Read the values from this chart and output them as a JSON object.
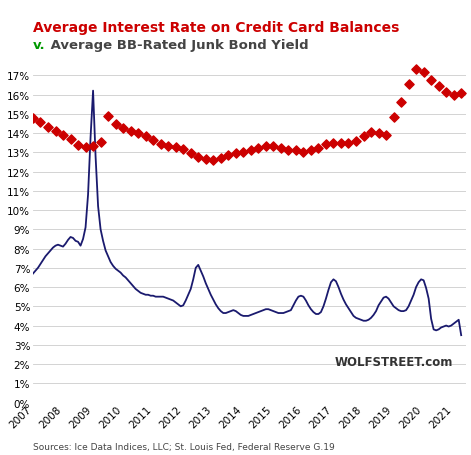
{
  "title_line1": "Average Interest Rate on Credit Card Balances",
  "title_line2_v": "v.",
  "title_line2_rest": " Average BB-Rated Junk Bond Yield",
  "title_color": "#cc0000",
  "title_v_color": "#009900",
  "title_line2_color": "#444444",
  "source_text": "Sources: Ice Data Indices, LLC; St. Louis Fed, Federal Reserve G.19",
  "watermark": "WOLFSTREET.com",
  "background_color": "#ffffff",
  "grid_color": "#cccccc",
  "ylim": [
    0,
    18
  ],
  "yticks": [
    0,
    1,
    2,
    3,
    4,
    5,
    6,
    7,
    8,
    9,
    10,
    11,
    12,
    13,
    14,
    15,
    16,
    17
  ],
  "cc_line_color": "#1a1a6e",
  "junk_marker_color": "#cc0000",
  "cc_dates": [
    2007.0,
    2007.083,
    2007.167,
    2007.25,
    2007.333,
    2007.417,
    2007.5,
    2007.583,
    2007.667,
    2007.75,
    2007.833,
    2007.917,
    2008.0,
    2008.083,
    2008.167,
    2008.25,
    2008.333,
    2008.417,
    2008.5,
    2008.583,
    2008.667,
    2008.75,
    2008.833,
    2008.917,
    2009.0,
    2009.083,
    2009.167,
    2009.25,
    2009.333,
    2009.417,
    2009.5,
    2009.583,
    2009.667,
    2009.75,
    2009.833,
    2009.917,
    2010.0,
    2010.083,
    2010.167,
    2010.25,
    2010.333,
    2010.417,
    2010.5,
    2010.583,
    2010.667,
    2010.75,
    2010.833,
    2010.917,
    2011.0,
    2011.083,
    2011.167,
    2011.25,
    2011.333,
    2011.417,
    2011.5,
    2011.583,
    2011.667,
    2011.75,
    2011.833,
    2011.917,
    2012.0,
    2012.083,
    2012.167,
    2012.25,
    2012.333,
    2012.417,
    2012.5,
    2012.583,
    2012.667,
    2012.75,
    2012.833,
    2012.917,
    2013.0,
    2013.083,
    2013.167,
    2013.25,
    2013.333,
    2013.417,
    2013.5,
    2013.583,
    2013.667,
    2013.75,
    2013.833,
    2013.917,
    2014.0,
    2014.083,
    2014.167,
    2014.25,
    2014.333,
    2014.417,
    2014.5,
    2014.583,
    2014.667,
    2014.75,
    2014.833,
    2014.917,
    2015.0,
    2015.083,
    2015.167,
    2015.25,
    2015.333,
    2015.417,
    2015.5,
    2015.583,
    2015.667,
    2015.75,
    2015.833,
    2015.917,
    2016.0,
    2016.083,
    2016.167,
    2016.25,
    2016.333,
    2016.417,
    2016.5,
    2016.583,
    2016.667,
    2016.75,
    2016.833,
    2016.917,
    2017.0,
    2017.083,
    2017.167,
    2017.25,
    2017.333,
    2017.417,
    2017.5,
    2017.583,
    2017.667,
    2017.75,
    2017.833,
    2017.917,
    2018.0,
    2018.083,
    2018.167,
    2018.25,
    2018.333,
    2018.417,
    2018.5,
    2018.583,
    2018.667,
    2018.75,
    2018.833,
    2018.917,
    2019.0,
    2019.083,
    2019.167,
    2019.25,
    2019.333,
    2019.417,
    2019.5,
    2019.583,
    2019.667,
    2019.75,
    2019.833,
    2019.917,
    2020.0,
    2020.083,
    2020.167,
    2020.25,
    2020.333,
    2020.417,
    2020.5,
    2020.583,
    2020.667,
    2020.75,
    2020.833,
    2020.917,
    2021.0,
    2021.083,
    2021.167,
    2021.25
  ],
  "cc_values": [
    6.7,
    6.85,
    7.0,
    7.2,
    7.4,
    7.6,
    7.75,
    7.9,
    8.05,
    8.15,
    8.2,
    8.15,
    8.1,
    8.25,
    8.45,
    8.6,
    8.55,
    8.4,
    8.35,
    8.15,
    8.5,
    9.1,
    10.8,
    13.8,
    16.2,
    12.8,
    10.2,
    9.0,
    8.4,
    7.9,
    7.6,
    7.3,
    7.1,
    6.95,
    6.85,
    6.75,
    6.6,
    6.5,
    6.35,
    6.2,
    6.05,
    5.9,
    5.8,
    5.7,
    5.65,
    5.6,
    5.6,
    5.55,
    5.55,
    5.5,
    5.5,
    5.5,
    5.5,
    5.45,
    5.4,
    5.35,
    5.3,
    5.2,
    5.1,
    5.0,
    5.05,
    5.3,
    5.6,
    5.9,
    6.4,
    7.0,
    7.15,
    6.85,
    6.55,
    6.2,
    5.9,
    5.6,
    5.35,
    5.1,
    4.9,
    4.75,
    4.65,
    4.65,
    4.7,
    4.75,
    4.8,
    4.75,
    4.65,
    4.55,
    4.5,
    4.5,
    4.5,
    4.55,
    4.6,
    4.65,
    4.7,
    4.75,
    4.8,
    4.85,
    4.85,
    4.8,
    4.75,
    4.7,
    4.65,
    4.65,
    4.65,
    4.7,
    4.75,
    4.8,
    5.05,
    5.3,
    5.5,
    5.55,
    5.5,
    5.3,
    5.05,
    4.85,
    4.7,
    4.6,
    4.6,
    4.7,
    5.0,
    5.4,
    5.85,
    6.25,
    6.4,
    6.3,
    6.0,
    5.65,
    5.35,
    5.1,
    4.9,
    4.7,
    4.5,
    4.4,
    4.35,
    4.3,
    4.25,
    4.25,
    4.3,
    4.4,
    4.55,
    4.75,
    5.05,
    5.25,
    5.45,
    5.5,
    5.4,
    5.2,
    5.0,
    4.9,
    4.8,
    4.75,
    4.75,
    4.8,
    5.0,
    5.3,
    5.6,
    6.0,
    6.25,
    6.4,
    6.35,
    5.95,
    5.4,
    4.35,
    3.8,
    3.75,
    3.8,
    3.9,
    3.95,
    4.0,
    3.95,
    4.0,
    4.1,
    4.2,
    4.3,
    3.5
  ],
  "junk_dates": [
    2007.0,
    2007.25,
    2007.5,
    2007.75,
    2008.0,
    2008.25,
    2008.5,
    2008.75,
    2009.0,
    2009.25,
    2009.5,
    2009.75,
    2010.0,
    2010.25,
    2010.5,
    2010.75,
    2011.0,
    2011.25,
    2011.5,
    2011.75,
    2012.0,
    2012.25,
    2012.5,
    2012.75,
    2013.0,
    2013.25,
    2013.5,
    2013.75,
    2014.0,
    2014.25,
    2014.5,
    2014.75,
    2015.0,
    2015.25,
    2015.5,
    2015.75,
    2016.0,
    2016.25,
    2016.5,
    2016.75,
    2017.0,
    2017.25,
    2017.5,
    2017.75,
    2018.0,
    2018.25,
    2018.5,
    2018.75,
    2019.0,
    2019.25,
    2019.5,
    2019.75,
    2020.0,
    2020.25,
    2020.5,
    2020.75,
    2021.0,
    2021.25
  ],
  "junk_values": [
    14.8,
    14.55,
    14.3,
    14.1,
    13.9,
    13.7,
    13.4,
    13.25,
    13.3,
    13.55,
    14.9,
    14.45,
    14.25,
    14.1,
    14.0,
    13.85,
    13.65,
    13.45,
    13.35,
    13.25,
    13.15,
    12.95,
    12.75,
    12.65,
    12.6,
    12.7,
    12.85,
    12.95,
    13.0,
    13.1,
    13.2,
    13.3,
    13.3,
    13.2,
    13.1,
    13.1,
    13.0,
    13.1,
    13.2,
    13.45,
    13.5,
    13.5,
    13.5,
    13.6,
    13.85,
    14.05,
    14.0,
    13.9,
    14.85,
    15.6,
    16.55,
    17.3,
    17.15,
    16.75,
    16.45,
    16.15,
    15.95,
    16.1
  ],
  "xlim": [
    2007.0,
    2021.42
  ],
  "xtick_years": [
    2007,
    2008,
    2009,
    2010,
    2011,
    2012,
    2013,
    2014,
    2015,
    2016,
    2017,
    2018,
    2019,
    2020,
    2021
  ]
}
